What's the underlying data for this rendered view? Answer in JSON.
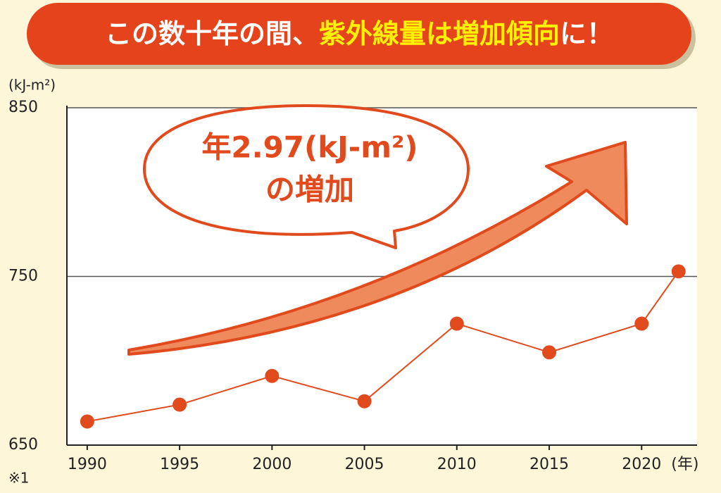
{
  "chart_data": {
    "type": "line",
    "title_parts": [
      "この数十年の間、",
      "紫外線量は増加傾向",
      "に！"
    ],
    "y_unit": "(kJ-m²)",
    "x_unit": "(年)",
    "note": "※1",
    "annotation": [
      "年2.97(kJ-m²)",
      "の増加"
    ],
    "x": [
      1990,
      1995,
      2000,
      2005,
      2010,
      2015,
      2020,
      2022
    ],
    "series": [
      {
        "color": "#e04a1c",
        "values": [
          664,
          674,
          691,
          676,
          722,
          705,
          722,
          753
        ]
      }
    ],
    "xlim": [
      1988.9,
      2023
    ],
    "xticks": [
      1990,
      1995,
      2000,
      2005,
      2010,
      2015,
      2020
    ],
    "ylim": [
      650,
      850
    ],
    "yticks": [
      650,
      750,
      850
    ],
    "grid": true
  }
}
